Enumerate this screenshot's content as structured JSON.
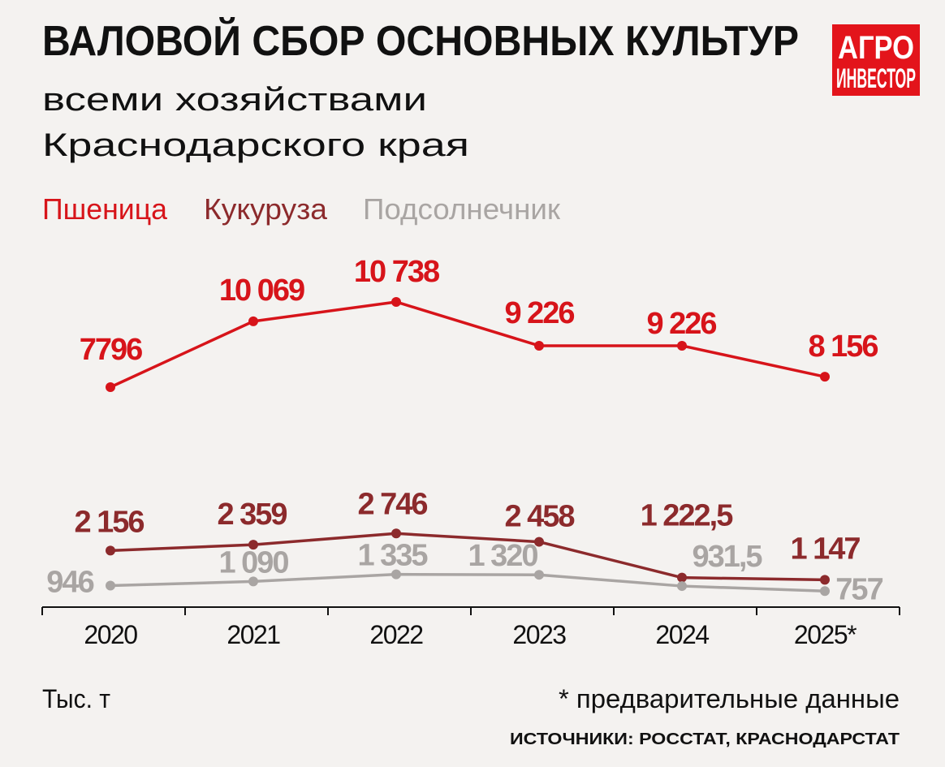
{
  "header": {
    "title": "ВАЛОВОЙ СБОР ОСНОВНЫХ КУЛЬТУР",
    "subtitle_line1": "всеми хозяйствами",
    "subtitle_line2": "Краснодарского края"
  },
  "logo": {
    "line1": "АГРО",
    "line2": "ИНВЕСТОР"
  },
  "footer": {
    "unit": "Тыс. т",
    "note": "* предварительные данные",
    "sources": "ИСТОЧНИКИ: РОССТАТ, КРАСНОДАРСТАТ"
  },
  "colors": {
    "background": "#f4f2f0",
    "wheat": "#d7141a",
    "corn": "#8c2a2c",
    "sunflower": "#a9a5a3",
    "text": "#111111",
    "logo": "#e3141b"
  },
  "chart_data": {
    "type": "line",
    "title": "ВАЛОВОЙ СБОР ОСНОВНЫХ КУЛЬТУР",
    "ylabel": "Тыс. т",
    "xlabel": "",
    "categories": [
      "2020",
      "2021",
      "2022",
      "2023",
      "2024",
      "2025*"
    ],
    "legend": [
      "Пшеница",
      "Кукуруза",
      "Подсолнечник"
    ],
    "legend_placement": "top-left",
    "grid": false,
    "series": [
      {
        "name": "Пшеница",
        "values": [
          7796,
          10069,
          10738,
          9226,
          9226,
          8156
        ],
        "labels": [
          "7796",
          "10 069",
          "10 738",
          "9 226",
          "9 226",
          "8 156"
        ]
      },
      {
        "name": "Кукуруза",
        "values": [
          2156,
          2359,
          2746,
          2458,
          1222.5,
          1147
        ],
        "labels": [
          "2 156",
          "2 359",
          "2 746",
          "2 458",
          "1 222,5",
          "1 147"
        ]
      },
      {
        "name": "Подсолнечник",
        "values": [
          946,
          1090,
          1335,
          1320,
          931.5,
          757
        ],
        "labels": [
          "946",
          "1 090",
          "1 335",
          "1 320",
          "931,5",
          "757"
        ]
      }
    ]
  }
}
